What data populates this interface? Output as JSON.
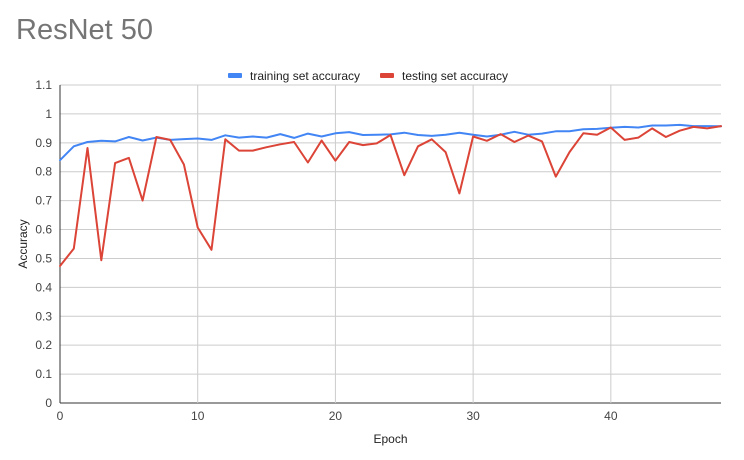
{
  "chart_data": {
    "type": "line",
    "title": "ResNet 50",
    "xlabel": "Epoch",
    "ylabel": "Accuracy",
    "xlim": [
      0,
      48
    ],
    "ylim": [
      0,
      1.1
    ],
    "x_ticks": [
      0,
      10,
      20,
      30,
      40
    ],
    "y_ticks": [
      "0",
      "0.1",
      "0.2",
      "0.3",
      "0.4",
      "0.5",
      "0.6",
      "0.7",
      "0.8",
      "0.9",
      "1",
      "1.1"
    ],
    "grid": true,
    "legend_position": "top",
    "x": [
      0,
      1,
      2,
      3,
      4,
      5,
      6,
      7,
      8,
      9,
      10,
      11,
      12,
      13,
      14,
      15,
      16,
      17,
      18,
      19,
      20,
      21,
      22,
      23,
      24,
      25,
      26,
      27,
      28,
      29,
      30,
      31,
      32,
      33,
      34,
      35,
      36,
      37,
      38,
      39,
      40,
      41,
      42,
      43,
      44,
      45,
      46,
      47,
      48
    ],
    "series": [
      {
        "name": "training set accuracy",
        "color": "#4285f4",
        "values": [
          0.84,
          0.888,
          0.903,
          0.907,
          0.905,
          0.92,
          0.908,
          0.918,
          0.91,
          0.913,
          0.915,
          0.91,
          0.926,
          0.918,
          0.922,
          0.918,
          0.93,
          0.917,
          0.932,
          0.922,
          0.933,
          0.937,
          0.927,
          0.928,
          0.929,
          0.935,
          0.927,
          0.924,
          0.928,
          0.935,
          0.928,
          0.922,
          0.928,
          0.938,
          0.928,
          0.932,
          0.94,
          0.94,
          0.947,
          0.948,
          0.952,
          0.955,
          0.953,
          0.96,
          0.96,
          0.962,
          0.958,
          0.958,
          0.957
        ]
      },
      {
        "name": "testing set accuracy",
        "color": "#db4437",
        "values": [
          0.474,
          0.534,
          0.882,
          0.494,
          0.83,
          0.848,
          0.7,
          0.92,
          0.91,
          0.825,
          0.607,
          0.53,
          0.912,
          0.873,
          0.873,
          0.885,
          0.895,
          0.903,
          0.832,
          0.908,
          0.838,
          0.903,
          0.892,
          0.898,
          0.927,
          0.788,
          0.888,
          0.912,
          0.868,
          0.725,
          0.922,
          0.907,
          0.93,
          0.903,
          0.925,
          0.905,
          0.783,
          0.868,
          0.933,
          0.928,
          0.953,
          0.91,
          0.918,
          0.95,
          0.92,
          0.942,
          0.955,
          0.95,
          0.958
        ]
      }
    ]
  }
}
